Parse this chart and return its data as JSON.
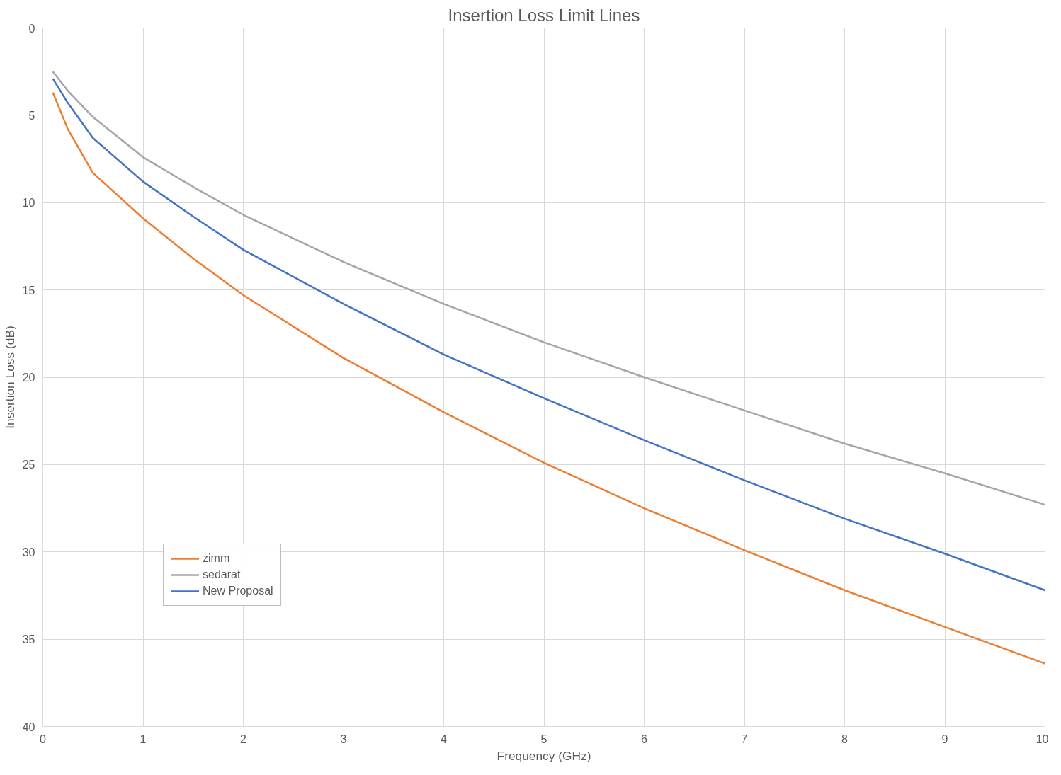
{
  "chart_data": {
    "type": "line",
    "title": "Insertion Loss Limit Lines",
    "xlabel": "Frequency (GHz)",
    "ylabel": "Insertion Loss (dB)",
    "x": [
      0.1,
      0.25,
      0.5,
      1,
      1.5,
      2,
      3,
      4,
      5,
      6,
      7,
      8,
      9,
      10
    ],
    "series": [
      {
        "name": "zimm",
        "color": "#ed7d31",
        "values": [
          3.7,
          5.8,
          8.3,
          10.9,
          13.2,
          15.3,
          18.9,
          22.0,
          24.9,
          27.5,
          29.9,
          32.2,
          34.3,
          36.4
        ]
      },
      {
        "name": "sedarat",
        "color": "#a5a5a5",
        "values": [
          2.5,
          3.6,
          5.1,
          7.4,
          9.1,
          10.7,
          13.4,
          15.8,
          18.0,
          20.0,
          21.9,
          23.8,
          25.5,
          27.3
        ]
      },
      {
        "name": "New Proposal",
        "color": "#4472c4",
        "values": [
          2.9,
          4.3,
          6.3,
          8.8,
          10.8,
          12.7,
          15.8,
          18.7,
          21.2,
          23.6,
          25.9,
          28.1,
          30.1,
          32.2
        ]
      }
    ],
    "xlim": [
      0,
      10
    ],
    "xticks": [
      0,
      1,
      2,
      3,
      4,
      5,
      6,
      7,
      8,
      9,
      10
    ],
    "ylim": [
      40,
      0
    ],
    "yticks": [
      0,
      5,
      10,
      15,
      20,
      25,
      30,
      35,
      40
    ],
    "grid": true,
    "legend": "bottom left",
    "marker": "none",
    "line_style": "solid"
  }
}
